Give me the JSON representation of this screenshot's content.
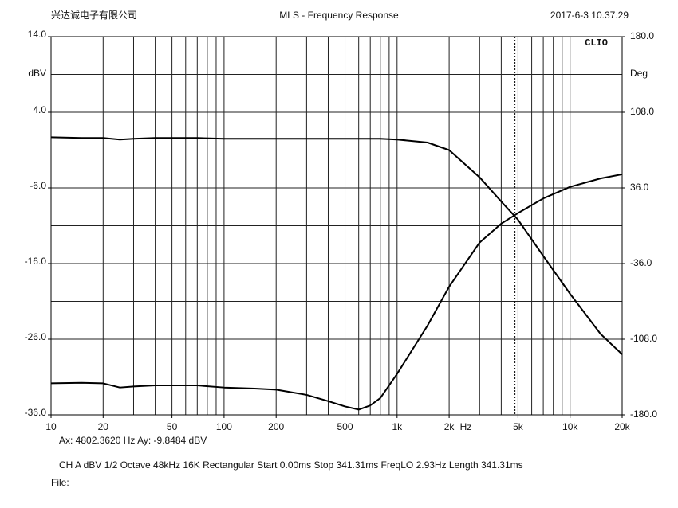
{
  "chart_data": {
    "type": "line",
    "header_left": "兴达诚电子有限公司",
    "title": "MLS - Frequency Response",
    "header_right": "2017-6-3 10.37.29",
    "brand": "CLIO",
    "ylabel": "dBV",
    "y2label": "Deg",
    "xlabel": "Hz",
    "log_x": true,
    "xlim": [
      10,
      20000
    ],
    "xticks": [
      10,
      20,
      50,
      100,
      200,
      500,
      {
        "value": 1000,
        "label": "1k"
      },
      {
        "value": 2000,
        "label": "2k"
      },
      {
        "value": 5000,
        "label": "5k"
      },
      {
        "value": 10000,
        "label": "10k"
      },
      {
        "value": 20000,
        "label": "20k"
      }
    ],
    "xgrid": [
      20,
      30,
      40,
      50,
      60,
      70,
      80,
      90,
      100,
      200,
      300,
      400,
      500,
      600,
      700,
      800,
      900,
      1000,
      2000,
      3000,
      4000,
      5000,
      6000,
      7000,
      8000,
      9000,
      10000
    ],
    "ylim": [
      -36,
      14
    ],
    "yticks": [
      {
        "value": 14,
        "label": "14.0"
      },
      {
        "value": 4,
        "label": "4.0"
      },
      {
        "value": -6,
        "label": "-6.0"
      },
      {
        "value": -16,
        "label": "-16.0"
      },
      {
        "value": -26,
        "label": "-26.0"
      },
      {
        "value": -36,
        "label": "-36.0"
      }
    ],
    "ygrid": [
      9,
      4,
      -1,
      -6,
      -11,
      -16,
      -21,
      -26,
      -31
    ],
    "y2lim": [
      -180,
      180
    ],
    "y2ticks": [
      {
        "value": 180,
        "label": "180.0"
      },
      {
        "value": 108,
        "label": "108.0"
      },
      {
        "value": 36,
        "label": "36.0"
      },
      {
        "value": -36,
        "label": "-36.0"
      },
      {
        "value": -108,
        "label": "-108.0"
      },
      {
        "value": -180,
        "label": "-180.0"
      }
    ],
    "x": [
      10,
      15,
      20,
      25,
      30,
      40,
      50,
      70,
      100,
      150,
      200,
      300,
      400,
      500,
      600,
      700,
      800,
      1000,
      1500,
      2000,
      3000,
      4000,
      5000,
      7000,
      10000,
      15000,
      20000
    ],
    "series": [
      {
        "name": "Magnitude",
        "color": "#000000",
        "values": [
          0.7,
          0.6,
          0.6,
          0.4,
          0.5,
          0.6,
          0.6,
          0.6,
          0.5,
          0.5,
          0.5,
          0.5,
          0.5,
          0.5,
          0.5,
          0.5,
          0.5,
          0.4,
          0.0,
          -1.0,
          -4.6,
          -7.8,
          -10.2,
          -15.0,
          -20.0,
          -25.3,
          -28.0
        ]
      },
      {
        "name": "Phase",
        "color": "#000000",
        "axis": "y2",
        "values": [
          -150,
          -149.5,
          -150,
          -154,
          -153,
          -152,
          -152,
          -152,
          -154,
          -155,
          -156,
          -161,
          -167,
          -172,
          -175,
          -171,
          -164,
          -141,
          -95,
          -58,
          -16,
          2,
          12,
          26,
          37,
          45,
          49
        ]
      }
    ],
    "cursor_x": 4802.362,
    "cursor_text": "Ax: 4802.3620 Hz   Ay: -9.8484 dBV",
    "settings_text": "CH A   dBV   1/2 Octave   48kHz   16K   Rectangular   Start 0.00ms    Stop 341.31ms    FreqLO 2.93Hz    Length 341.31ms",
    "file_text": "File:"
  }
}
